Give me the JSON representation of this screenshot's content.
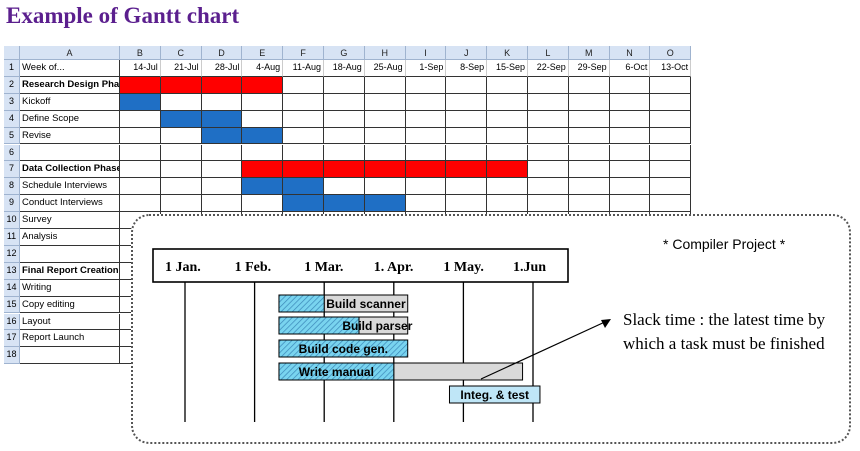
{
  "title": "Example of Gantt chart",
  "sheet": {
    "column_letters": [
      "A",
      "B",
      "C",
      "D",
      "E",
      "F",
      "G",
      "H",
      "I",
      "J",
      "K",
      "L",
      "M",
      "N",
      "O"
    ],
    "week_label": "Week of...",
    "weeks": [
      "14-Jul",
      "21-Jul",
      "28-Jul",
      "4-Aug",
      "11-Aug",
      "18-Aug",
      "25-Aug",
      "1-Sep",
      "8-Sep",
      "15-Sep",
      "22-Sep",
      "29-Sep",
      "6-Oct",
      "13-Oct"
    ],
    "rows": [
      {
        "num": "2",
        "label": "Research Design Phase",
        "bold": true,
        "start": 0,
        "end": 4,
        "color": "red"
      },
      {
        "num": "3",
        "label": "Kickoff",
        "bold": false,
        "start": 0,
        "end": 1,
        "color": "blue"
      },
      {
        "num": "4",
        "label": "Define Scope",
        "bold": false,
        "start": 1,
        "end": 3,
        "color": "blue"
      },
      {
        "num": "5",
        "label": "Revise",
        "bold": false,
        "start": 2,
        "end": 4,
        "color": "blue"
      },
      {
        "num": "6",
        "label": "",
        "bold": false
      },
      {
        "num": "7",
        "label": "Data Collection Phase",
        "bold": true,
        "start": 3,
        "end": 10,
        "color": "red"
      },
      {
        "num": "8",
        "label": "Schedule Interviews",
        "bold": false,
        "start": 3,
        "end": 5,
        "color": "blue"
      },
      {
        "num": "9",
        "label": "Conduct Interviews",
        "bold": false,
        "start": 4,
        "end": 7,
        "color": "blue"
      },
      {
        "num": "10",
        "label": "Survey",
        "bold": false
      },
      {
        "num": "11",
        "label": "Analysis",
        "bold": false
      },
      {
        "num": "12",
        "label": "",
        "bold": false
      },
      {
        "num": "13",
        "label": "Final Report Creation",
        "bold": true
      },
      {
        "num": "14",
        "label": "Writing",
        "bold": false
      },
      {
        "num": "15",
        "label": "Copy editing",
        "bold": false
      },
      {
        "num": "16",
        "label": "Layout",
        "bold": false
      },
      {
        "num": "17",
        "label": "Report Launch",
        "bold": false
      },
      {
        "num": "18",
        "label": "",
        "bold": false
      }
    ],
    "colors": {
      "red": "#ff0000",
      "blue": "#1f6fc5"
    }
  },
  "overlay": {
    "project_label": "*  Compiler Project *",
    "slack_text": "Slack time : the latest time by which a task must be finished",
    "months": [
      "1 Jan.",
      "1 Feb.",
      "1 Mar.",
      "1. Apr.",
      "1 May.",
      "1.Jun"
    ],
    "tasks": [
      {
        "name": "Build scanner",
        "start": 1.35,
        "end": 3.2,
        "done_end": 2.0
      },
      {
        "name": "Build parser",
        "start": 1.35,
        "end": 3.2,
        "done_end": 2.5
      },
      {
        "name": "Build code gen.",
        "start": 1.35,
        "end": 3.2,
        "done_end": 3.2
      },
      {
        "name": "Write manual",
        "start": 1.35,
        "end": 4.85,
        "done_end": 3.0
      },
      {
        "name": "Integ. & test",
        "start": 3.8,
        "end": 5.1,
        "done_end": 3.8
      }
    ],
    "colors": {
      "done": "#79d4ef",
      "slack": "#d9d9d9",
      "test": "#bfe6f7"
    }
  }
}
